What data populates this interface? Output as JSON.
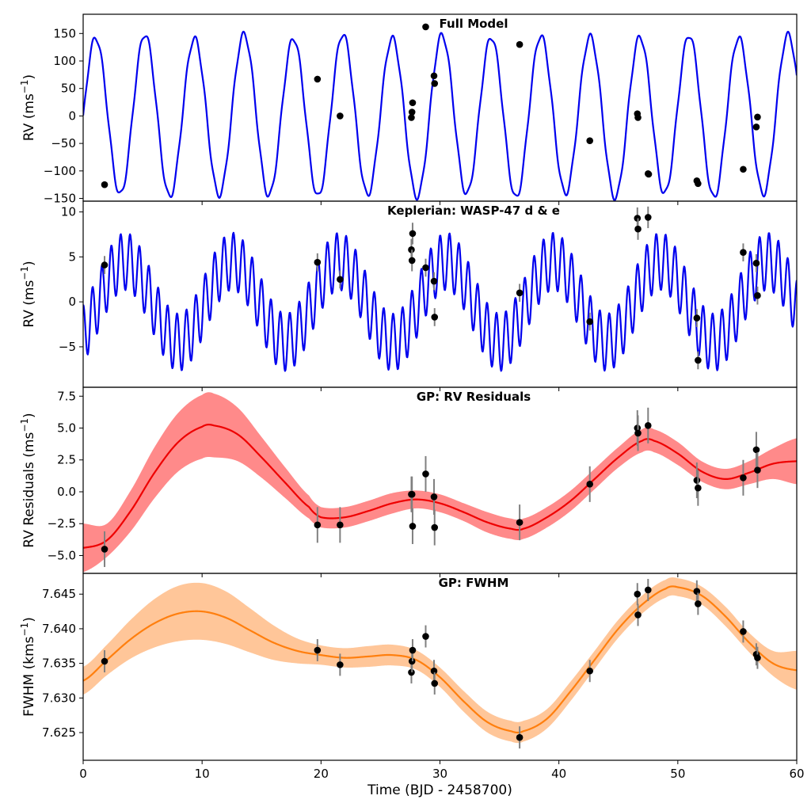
{
  "chart_data": [
    {
      "id": "p0",
      "type": "line",
      "title": "Full Model",
      "ylabel": "RV (ms",
      "ylabel_sup": "−1",
      "ylabel_tail": ")",
      "ylim": [
        -155,
        185
      ],
      "yticks": [
        150,
        100,
        50,
        0,
        -50,
        -100,
        -150
      ],
      "series": [
        {
          "style": "line",
          "color": "#0000ee",
          "model": {
            "kind": "sum_sin",
            "terms": [
              [
                145,
                4.16,
                0
              ],
              [
                5,
                0.79,
                1.5
              ],
              [
                4,
                9.0,
                -1.5
              ]
            ]
          }
        },
        {
          "style": "points",
          "color": "#000000",
          "errorbars": false,
          "points": [
            [
              1.8,
              -125
            ],
            [
              19.7,
              67
            ],
            [
              21.6,
              0
            ],
            [
              27.6,
              -3
            ],
            [
              27.65,
              7
            ],
            [
              27.7,
              24
            ],
            [
              28.8,
              162
            ],
            [
              29.5,
              73
            ],
            [
              29.55,
              59
            ],
            [
              36.7,
              130
            ],
            [
              42.6,
              -45
            ],
            [
              46.6,
              4
            ],
            [
              46.65,
              -3
            ],
            [
              47.5,
              -105
            ],
            [
              47.55,
              -106
            ],
            [
              51.6,
              -118
            ],
            [
              51.7,
              -123
            ],
            [
              55.5,
              -97
            ],
            [
              56.6,
              -20
            ],
            [
              56.7,
              -2
            ]
          ]
        }
      ]
    },
    {
      "id": "p1",
      "type": "line",
      "title": "Keplerian: WASP-47 d & e",
      "ylabel": "RV (ms",
      "ylabel_sup": "−1",
      "ylabel_tail": ")",
      "ylim": [
        -9.5,
        11.2
      ],
      "yticks": [
        10,
        5,
        0,
        -5
      ],
      "series": [
        {
          "style": "line",
          "color": "#0000ee",
          "model": {
            "kind": "sum_sin",
            "terms": [
              [
                3.2,
                0.79,
                1.6
              ],
              [
                4.5,
                9.0,
                -0.9
              ]
            ]
          }
        },
        {
          "style": "points",
          "color": "#000000",
          "errorbars": true,
          "points": [
            [
              1.8,
              4.1,
              1.0
            ],
            [
              19.7,
              4.4,
              1.0
            ],
            [
              21.6,
              2.5,
              1.0
            ],
            [
              27.6,
              5.8,
              1.2
            ],
            [
              27.65,
              4.6,
              1.2
            ],
            [
              27.7,
              7.6,
              1.2
            ],
            [
              28.8,
              3.8,
              1.0
            ],
            [
              29.5,
              2.3,
              1.0
            ],
            [
              29.55,
              -1.7,
              1.0
            ],
            [
              36.7,
              1.0,
              1.0
            ],
            [
              42.6,
              -2.2,
              1.0
            ],
            [
              46.6,
              9.3,
              1.2
            ],
            [
              46.65,
              8.1,
              1.2
            ],
            [
              47.5,
              9.4,
              1.2
            ],
            [
              51.6,
              -1.8,
              1.0
            ],
            [
              51.7,
              -6.5,
              1.0
            ],
            [
              55.5,
              5.5,
              1.0
            ],
            [
              56.6,
              4.3,
              1.0
            ],
            [
              56.7,
              0.7,
              1.0
            ]
          ]
        }
      ]
    },
    {
      "id": "p2",
      "type": "line",
      "title": "GP: RV Residuals",
      "ylabel": "RV Residuals (ms",
      "ylabel_sup": "−1",
      "ylabel_tail": ")",
      "ylim": [
        -6.4,
        8.2
      ],
      "yticks": [
        "7.5",
        "5.0",
        "2.5",
        "0.0",
        "−2.5",
        "−5.0"
      ],
      "ytick_values": [
        7.5,
        5.0,
        2.5,
        0.0,
        -2.5,
        -5.0
      ],
      "series": [
        {
          "style": "line",
          "color": "#ee0000",
          "band_color": "#ff8a8a",
          "knots": [
            [
              0,
              -4.4,
              1.9
            ],
            [
              2,
              -3.8,
              1.3
            ],
            [
              4,
              -1.5,
              1.6
            ],
            [
              6,
              1.5,
              2.0
            ],
            [
              8,
              3.9,
              2.3
            ],
            [
              10,
              5.1,
              2.5
            ],
            [
              11,
              5.2,
              2.5
            ],
            [
              13,
              4.5,
              2.1
            ],
            [
              15,
              2.7,
              1.6
            ],
            [
              17,
              0.7,
              1.2
            ],
            [
              19,
              -1.2,
              0.9
            ],
            [
              20,
              -2.0,
              0.8
            ],
            [
              22,
              -2.0,
              0.8
            ],
            [
              24,
              -1.5,
              0.8
            ],
            [
              26,
              -0.9,
              0.8
            ],
            [
              28,
              -0.6,
              0.7
            ],
            [
              30,
              -0.9,
              0.7
            ],
            [
              32,
              -1.6,
              0.7
            ],
            [
              34,
              -2.4,
              0.8
            ],
            [
              36,
              -2.9,
              0.8
            ],
            [
              37,
              -2.9,
              0.8
            ],
            [
              39,
              -2.0,
              0.8
            ],
            [
              41,
              -0.7,
              0.8
            ],
            [
              43,
              1.0,
              0.8
            ],
            [
              45,
              2.7,
              0.8
            ],
            [
              47,
              4.0,
              0.9
            ],
            [
              48,
              4.0,
              0.9
            ],
            [
              50,
              3.0,
              0.9
            ],
            [
              52,
              1.6,
              0.8
            ],
            [
              54,
              1.0,
              0.8
            ],
            [
              56,
              1.5,
              0.9
            ],
            [
              58,
              2.2,
              1.2
            ],
            [
              60,
              2.4,
              1.8
            ]
          ]
        },
        {
          "style": "points",
          "color": "#000000",
          "errorbars": true,
          "points": [
            [
              1.8,
              -4.5,
              1.4
            ],
            [
              19.7,
              -2.6,
              1.4
            ],
            [
              21.6,
              -2.6,
              1.4
            ],
            [
              27.6,
              -0.2,
              1.4
            ],
            [
              27.65,
              -0.2,
              1.4
            ],
            [
              27.7,
              -2.7,
              1.4
            ],
            [
              28.8,
              1.4,
              1.4
            ],
            [
              29.5,
              -0.4,
              1.4
            ],
            [
              29.55,
              -2.8,
              1.4
            ],
            [
              36.7,
              -2.4,
              1.4
            ],
            [
              42.6,
              0.6,
              1.4
            ],
            [
              46.6,
              5.0,
              1.4
            ],
            [
              46.65,
              4.6,
              1.4
            ],
            [
              47.5,
              5.2,
              1.4
            ],
            [
              51.6,
              0.9,
              1.4
            ],
            [
              51.7,
              0.3,
              1.4
            ],
            [
              55.5,
              1.1,
              1.4
            ],
            [
              56.6,
              3.3,
              1.4
            ],
            [
              56.7,
              1.7,
              1.4
            ]
          ]
        }
      ]
    },
    {
      "id": "p3",
      "type": "line",
      "title": "GP: FWHM",
      "ylabel": "FWHM (kms",
      "ylabel_sup": "−1",
      "ylabel_tail": ")",
      "ylim": [
        7.621,
        7.648
      ],
      "yticks": [
        "7.645",
        "7.640",
        "7.635",
        "7.630",
        "7.625"
      ],
      "ytick_values": [
        7.645,
        7.64,
        7.635,
        7.63,
        7.625
      ],
      "xlabel": "Time (BJD - 2458700)",
      "xlim": [
        0,
        60
      ],
      "xticks": [
        "0",
        "10",
        "20",
        "30",
        "40",
        "50",
        "60"
      ],
      "xtick_values": [
        0,
        10,
        20,
        30,
        40,
        50,
        60
      ],
      "series": [
        {
          "style": "line",
          "color": "#ff7f0e",
          "band_color": "#ffc699",
          "knots": [
            [
              0,
              7.6325,
              0.002
            ],
            [
              2,
              7.6355,
              0.0022
            ],
            [
              4,
              7.6385,
              0.0028
            ],
            [
              6,
              7.6408,
              0.0035
            ],
            [
              8,
              7.6422,
              0.004
            ],
            [
              10,
              7.6425,
              0.0041
            ],
            [
              12,
              7.6416,
              0.0038
            ],
            [
              14,
              7.6398,
              0.0032
            ],
            [
              16,
              7.638,
              0.0025
            ],
            [
              18,
              7.6368,
              0.0018
            ],
            [
              20,
              7.6362,
              0.0014
            ],
            [
              22,
              7.6358,
              0.0014
            ],
            [
              24,
              7.636,
              0.0015
            ],
            [
              26,
              7.6362,
              0.0015
            ],
            [
              28,
              7.6355,
              0.0014
            ],
            [
              30,
              7.633,
              0.0014
            ],
            [
              32,
              7.6295,
              0.0015
            ],
            [
              34,
              7.6265,
              0.0015
            ],
            [
              36,
              7.6252,
              0.0015
            ],
            [
              37,
              7.6252,
              0.0015
            ],
            [
              39,
              7.627,
              0.0014
            ],
            [
              41,
              7.631,
              0.0014
            ],
            [
              43,
              7.6355,
              0.0013
            ],
            [
              45,
              7.64,
              0.0013
            ],
            [
              47,
              7.6435,
              0.0013
            ],
            [
              49,
              7.6458,
              0.0013
            ],
            [
              50,
              7.646,
              0.0013
            ],
            [
              52,
              7.6448,
              0.0013
            ],
            [
              54,
              7.6418,
              0.0014
            ],
            [
              56,
              7.638,
              0.0014
            ],
            [
              58,
              7.635,
              0.0018
            ],
            [
              60,
              7.634,
              0.0028
            ]
          ]
        },
        {
          "style": "points",
          "color": "#000000",
          "errorbars": true,
          "points": [
            [
              1.8,
              7.6353,
              0.0016
            ],
            [
              19.7,
              7.6369,
              0.0016
            ],
            [
              21.6,
              7.6348,
              0.0016
            ],
            [
              27.6,
              7.6337,
              0.0016
            ],
            [
              27.65,
              7.6353,
              0.0016
            ],
            [
              27.7,
              7.6369,
              0.0016
            ],
            [
              28.8,
              7.6389,
              0.0016
            ],
            [
              29.5,
              7.6339,
              0.0016
            ],
            [
              29.55,
              7.6321,
              0.0016
            ],
            [
              36.7,
              7.6243,
              0.0016
            ],
            [
              42.6,
              7.6339,
              0.0016
            ],
            [
              46.6,
              7.645,
              0.0016
            ],
            [
              46.65,
              7.642,
              0.0016
            ],
            [
              47.5,
              7.6456,
              0.0016
            ],
            [
              51.6,
              7.6454,
              0.0016
            ],
            [
              51.7,
              7.6436,
              0.0016
            ],
            [
              55.5,
              7.6396,
              0.0016
            ],
            [
              56.6,
              7.6363,
              0.0016
            ],
            [
              56.7,
              7.6358,
              0.0016
            ]
          ]
        }
      ]
    }
  ]
}
